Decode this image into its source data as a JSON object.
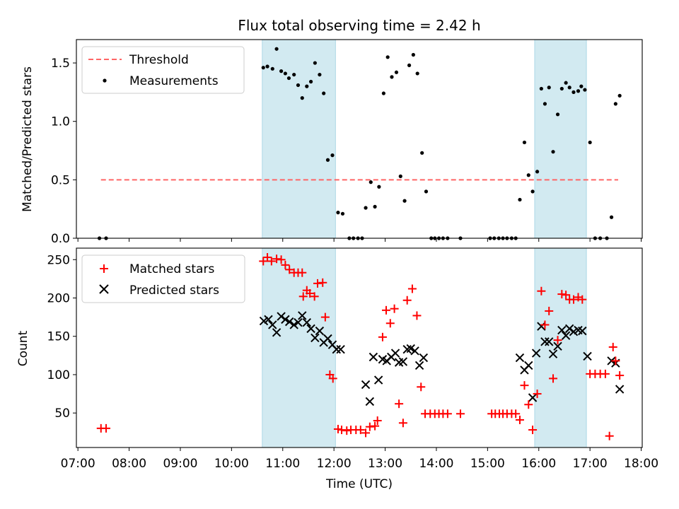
{
  "chart_data": [
    {
      "type": "scatter",
      "panel": "top",
      "title": "Flux total observing time = 2.42 h",
      "xlabel": "",
      "ylabel": "Matched/Predicted stars",
      "xlim": [
        6.97,
        18.02
      ],
      "ylim": [
        0,
        1.7
      ],
      "yticks": [
        0.0,
        0.5,
        1.0,
        1.5
      ],
      "ytick_labels": [
        "0.0",
        "0.5",
        "1.0",
        "1.5"
      ],
      "legend_position": "upper-left",
      "shaded_intervals": [
        [
          10.6,
          12.03
        ],
        [
          15.92,
          16.93
        ]
      ],
      "shade_color": "#add8e6",
      "threshold": {
        "name": "Threshold",
        "y": 0.5,
        "x_range": [
          7.45,
          17.55
        ],
        "color": "#ff6666"
      },
      "series": [
        {
          "name": "Measurements",
          "color": "#000000",
          "points": [
            [
              7.42,
              0.0
            ],
            [
              7.55,
              0.0
            ],
            [
              10.62,
              1.46
            ],
            [
              10.7,
              1.47
            ],
            [
              10.8,
              1.45
            ],
            [
              10.88,
              1.62
            ],
            [
              10.97,
              1.43
            ],
            [
              11.05,
              1.41
            ],
            [
              11.12,
              1.37
            ],
            [
              11.22,
              1.4
            ],
            [
              11.3,
              1.31
            ],
            [
              11.38,
              1.2
            ],
            [
              11.47,
              1.3
            ],
            [
              11.55,
              1.34
            ],
            [
              11.63,
              1.5
            ],
            [
              11.72,
              1.4
            ],
            [
              11.8,
              1.24
            ],
            [
              11.88,
              0.67
            ],
            [
              11.97,
              0.71
            ],
            [
              12.08,
              0.22
            ],
            [
              12.17,
              0.21
            ],
            [
              12.3,
              0.0
            ],
            [
              12.38,
              0.0
            ],
            [
              12.47,
              0.0
            ],
            [
              12.55,
              0.0
            ],
            [
              12.62,
              0.26
            ],
            [
              12.72,
              0.48
            ],
            [
              12.8,
              0.27
            ],
            [
              12.88,
              0.44
            ],
            [
              12.97,
              1.24
            ],
            [
              13.05,
              1.55
            ],
            [
              13.13,
              1.38
            ],
            [
              13.22,
              1.42
            ],
            [
              13.3,
              0.53
            ],
            [
              13.38,
              0.32
            ],
            [
              13.47,
              1.48
            ],
            [
              13.55,
              1.57
            ],
            [
              13.63,
              1.41
            ],
            [
              13.72,
              0.73
            ],
            [
              13.8,
              0.4
            ],
            [
              13.9,
              0.0
            ],
            [
              13.97,
              0.0
            ],
            [
              14.05,
              0.0
            ],
            [
              14.13,
              0.0
            ],
            [
              14.22,
              0.0
            ],
            [
              14.47,
              0.0
            ],
            [
              15.05,
              0.0
            ],
            [
              15.13,
              0.0
            ],
            [
              15.22,
              0.0
            ],
            [
              15.3,
              0.0
            ],
            [
              15.38,
              0.0
            ],
            [
              15.47,
              0.0
            ],
            [
              15.55,
              0.0
            ],
            [
              15.63,
              0.33
            ],
            [
              15.72,
              0.82
            ],
            [
              15.8,
              0.54
            ],
            [
              15.88,
              0.4
            ],
            [
              15.97,
              0.57
            ],
            [
              16.05,
              1.28
            ],
            [
              16.12,
              1.15
            ],
            [
              16.2,
              1.29
            ],
            [
              16.28,
              0.74
            ],
            [
              16.37,
              1.06
            ],
            [
              16.45,
              1.28
            ],
            [
              16.53,
              1.33
            ],
            [
              16.6,
              1.29
            ],
            [
              16.68,
              1.25
            ],
            [
              16.77,
              1.26
            ],
            [
              16.83,
              1.3
            ],
            [
              16.9,
              1.27
            ],
            [
              17.0,
              0.82
            ],
            [
              17.1,
              0.0
            ],
            [
              17.2,
              0.0
            ],
            [
              17.33,
              0.0
            ],
            [
              17.42,
              0.18
            ],
            [
              17.5,
              1.15
            ],
            [
              17.58,
              1.22
            ]
          ]
        }
      ]
    },
    {
      "type": "scatter",
      "panel": "bottom",
      "xlabel": "Time (UTC)",
      "ylabel": "Count",
      "xlim": [
        6.97,
        18.02
      ],
      "ylim": [
        5,
        265
      ],
      "xticks": [
        7,
        8,
        9,
        10,
        11,
        12,
        13,
        14,
        15,
        16,
        17,
        18
      ],
      "xtick_labels": [
        "07:00",
        "08:00",
        "09:00",
        "10:00",
        "11:00",
        "12:00",
        "13:00",
        "14:00",
        "15:00",
        "16:00",
        "17:00",
        "18:00"
      ],
      "yticks": [
        50,
        100,
        150,
        200,
        250
      ],
      "ytick_labels": [
        "50",
        "100",
        "150",
        "200",
        "250"
      ],
      "legend_position": "upper-left",
      "shaded_intervals": [
        [
          10.6,
          12.03
        ],
        [
          15.92,
          16.93
        ]
      ],
      "shade_color": "#add8e6",
      "series": [
        {
          "name": "Matched stars",
          "marker": "plus",
          "color": "#ff0000",
          "points": [
            [
              7.45,
              30
            ],
            [
              7.55,
              30
            ],
            [
              10.62,
              248
            ],
            [
              10.7,
              253
            ],
            [
              10.78,
              248
            ],
            [
              10.88,
              251
            ],
            [
              10.97,
              250
            ],
            [
              11.05,
              243
            ],
            [
              11.13,
              237
            ],
            [
              11.22,
              233
            ],
            [
              11.3,
              233
            ],
            [
              11.38,
              233
            ],
            [
              11.4,
              202
            ],
            [
              11.47,
              210
            ],
            [
              11.53,
              206
            ],
            [
              11.62,
              202
            ],
            [
              11.68,
              219
            ],
            [
              11.78,
              220
            ],
            [
              11.83,
              175
            ],
            [
              11.92,
              100
            ],
            [
              11.98,
              95
            ],
            [
              12.08,
              29
            ],
            [
              12.15,
              28
            ],
            [
              12.25,
              27
            ],
            [
              12.33,
              28
            ],
            [
              12.43,
              28
            ],
            [
              12.52,
              28
            ],
            [
              12.62,
              24
            ],
            [
              12.7,
              32
            ],
            [
              12.8,
              33
            ],
            [
              12.85,
              40
            ],
            [
              12.95,
              149
            ],
            [
              13.02,
              184
            ],
            [
              13.1,
              167
            ],
            [
              13.18,
              186
            ],
            [
              13.27,
              62
            ],
            [
              13.35,
              37
            ],
            [
              13.43,
              197
            ],
            [
              13.53,
              212
            ],
            [
              13.62,
              177
            ],
            [
              13.7,
              84
            ],
            [
              13.78,
              49
            ],
            [
              13.88,
              49
            ],
            [
              13.97,
              49
            ],
            [
              14.05,
              49
            ],
            [
              14.13,
              49
            ],
            [
              14.22,
              49
            ],
            [
              14.47,
              49
            ],
            [
              15.08,
              49
            ],
            [
              15.15,
              49
            ],
            [
              15.23,
              49
            ],
            [
              15.3,
              49
            ],
            [
              15.38,
              49
            ],
            [
              15.47,
              49
            ],
            [
              15.55,
              49
            ],
            [
              15.63,
              41
            ],
            [
              15.72,
              86
            ],
            [
              15.8,
              61
            ],
            [
              15.88,
              28
            ],
            [
              15.97,
              75
            ],
            [
              16.05,
              209
            ],
            [
              16.12,
              165
            ],
            [
              16.2,
              183
            ],
            [
              16.28,
              95
            ],
            [
              16.37,
              145
            ],
            [
              16.45,
              205
            ],
            [
              16.53,
              204
            ],
            [
              16.6,
              198
            ],
            [
              16.68,
              198
            ],
            [
              16.77,
              201
            ],
            [
              16.85,
              198
            ],
            [
              17.0,
              101
            ],
            [
              17.1,
              101
            ],
            [
              17.2,
              101
            ],
            [
              17.3,
              101
            ],
            [
              17.38,
              20
            ],
            [
              17.45,
              136
            ],
            [
              17.5,
              118
            ],
            [
              17.58,
              99
            ]
          ]
        },
        {
          "name": "Predicted stars",
          "marker": "x",
          "color": "#000000",
          "points": [
            [
              10.63,
              170
            ],
            [
              10.72,
              172
            ],
            [
              10.8,
              165
            ],
            [
              10.88,
              155
            ],
            [
              10.97,
              176
            ],
            [
              11.05,
              172
            ],
            [
              11.13,
              169
            ],
            [
              11.22,
              165
            ],
            [
              11.3,
              168
            ],
            [
              11.38,
              177
            ],
            [
              11.47,
              168
            ],
            [
              11.55,
              160
            ],
            [
              11.63,
              148
            ],
            [
              11.72,
              157
            ],
            [
              11.8,
              142
            ],
            [
              11.88,
              147
            ],
            [
              11.97,
              139
            ],
            [
              12.05,
              133
            ],
            [
              12.13,
              133
            ],
            [
              12.62,
              87
            ],
            [
              12.7,
              65
            ],
            [
              12.77,
              123
            ],
            [
              12.87,
              93
            ],
            [
              12.95,
              120
            ],
            [
              13.03,
              118
            ],
            [
              13.12,
              123
            ],
            [
              13.2,
              128
            ],
            [
              13.27,
              116
            ],
            [
              13.35,
              117
            ],
            [
              13.43,
              133
            ],
            [
              13.5,
              134
            ],
            [
              13.58,
              131
            ],
            [
              13.67,
              112
            ],
            [
              13.75,
              122
            ],
            [
              15.63,
              122
            ],
            [
              15.72,
              106
            ],
            [
              15.8,
              112
            ],
            [
              15.88,
              70
            ],
            [
              15.95,
              128
            ],
            [
              16.05,
              163
            ],
            [
              16.12,
              143
            ],
            [
              16.2,
              143
            ],
            [
              16.28,
              127
            ],
            [
              16.37,
              137
            ],
            [
              16.45,
              158
            ],
            [
              16.53,
              151
            ],
            [
              16.6,
              160
            ],
            [
              16.68,
              156
            ],
            [
              16.77,
              158
            ],
            [
              16.85,
              157
            ],
            [
              16.95,
              124
            ],
            [
              17.42,
              118
            ],
            [
              17.5,
              115
            ],
            [
              17.58,
              81
            ]
          ]
        }
      ]
    }
  ]
}
